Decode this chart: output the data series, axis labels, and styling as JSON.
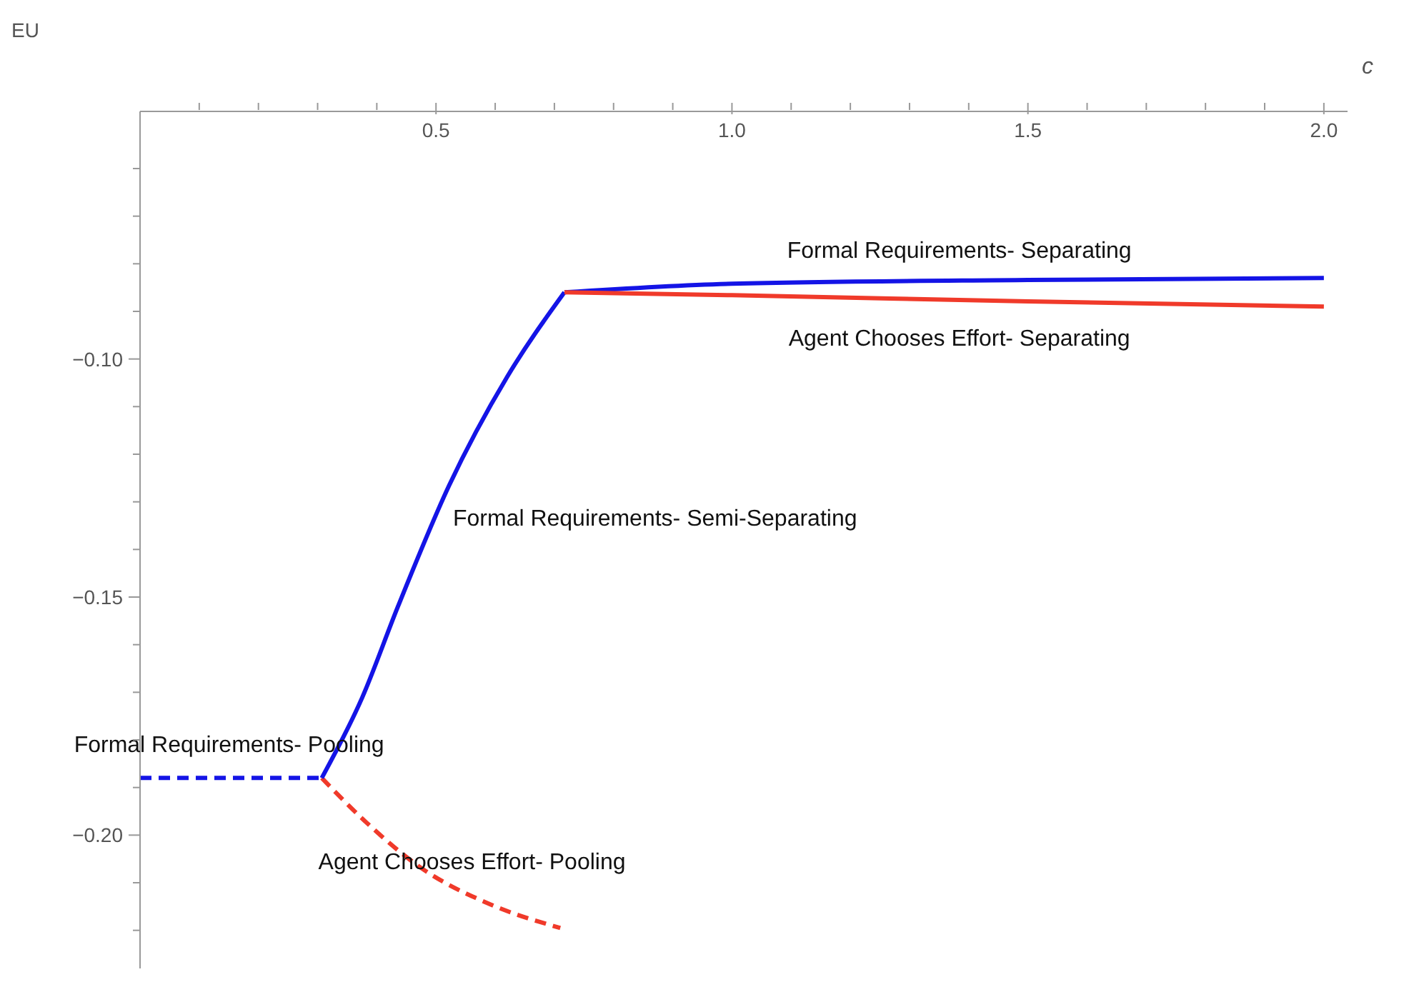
{
  "chart_data": {
    "type": "line",
    "xlabel": "c",
    "ylabel": "EU",
    "xlim": [
      0,
      2.04
    ],
    "ylim": [
      -0.228,
      -0.048
    ],
    "xticks": [
      {
        "value": 0.1,
        "label": null
      },
      {
        "value": 0.2,
        "label": null
      },
      {
        "value": 0.3,
        "label": null
      },
      {
        "value": 0.4,
        "label": null
      },
      0.5,
      {
        "value": 0.6,
        "label": null
      },
      {
        "value": 0.7,
        "label": null
      },
      {
        "value": 0.8,
        "label": null
      },
      {
        "value": 0.9,
        "label": null
      },
      {
        "value": 1,
        "label": "1.0"
      },
      {
        "value": 1.1,
        "label": null
      },
      {
        "value": 1.2,
        "label": null
      },
      {
        "value": 1.3,
        "label": null
      },
      {
        "value": 1.4,
        "label": null
      },
      1.5,
      {
        "value": 1.6,
        "label": null
      },
      {
        "value": 1.7,
        "label": null
      },
      {
        "value": 1.8,
        "label": null
      },
      {
        "value": 1.9,
        "label": null
      },
      {
        "value": 2,
        "label": "2.0"
      }
    ],
    "yticks": [
      {
        "value": -0.06,
        "label": null
      },
      {
        "value": -0.07,
        "label": null
      },
      {
        "value": -0.08,
        "label": null
      },
      {
        "value": -0.09,
        "label": null
      },
      {
        "value": -0.1,
        "label": "−0.10"
      },
      {
        "value": -0.11,
        "label": null
      },
      {
        "value": -0.12,
        "label": null
      },
      {
        "value": -0.13,
        "label": null
      },
      {
        "value": -0.14,
        "label": null
      },
      {
        "value": -0.15,
        "label": "−0.15"
      },
      {
        "value": -0.16,
        "label": null
      },
      {
        "value": -0.17,
        "label": null
      },
      {
        "value": -0.18,
        "label": null
      },
      {
        "value": -0.19,
        "label": null
      },
      {
        "value": -0.2,
        "label": "−0.20"
      },
      {
        "value": -0.21,
        "label": null
      },
      {
        "value": -0.22,
        "label": null
      }
    ],
    "grid": false,
    "legend": false,
    "marker": "none",
    "series": [
      {
        "name": "Formal Requirements- Pooling",
        "color": "#1414e6",
        "line_style": "dashed",
        "x": [
          0,
          0.307
        ],
        "values": [
          -0.188,
          -0.188
        ]
      },
      {
        "name": "Agent Chooses Effort- Pooling",
        "color": "#f03a2a",
        "line_style": "dashed",
        "x": [
          0.307,
          0.382,
          0.475,
          0.593,
          0.71
        ],
        "values": [
          -0.188,
          -0.1973,
          -0.2069,
          -0.2146,
          -0.2195
        ]
      },
      {
        "name": "Formal Requirements- Semi-Separating",
        "color": "#1414e6",
        "line_style": "solid",
        "x": [
          0.307,
          0.375,
          0.436,
          0.522,
          0.62,
          0.717
        ],
        "values": [
          -0.188,
          -0.1712,
          -0.1519,
          -0.1266,
          -0.1038,
          -0.086
        ]
      },
      {
        "name": "Formal Requirements- Separating",
        "color": "#1414e6",
        "line_style": "solid",
        "x": [
          0.717,
          1,
          1.5,
          2
        ],
        "values": [
          -0.086,
          -0.0842,
          -0.0834,
          -0.083
        ]
      },
      {
        "name": "Agent Chooses Effort- Separating",
        "color": "#f03a2a",
        "line_style": "solid",
        "x": [
          0.717,
          1,
          1.5,
          2
        ],
        "values": [
          -0.086,
          -0.0866,
          -0.0879,
          -0.089
        ]
      }
    ]
  }
}
